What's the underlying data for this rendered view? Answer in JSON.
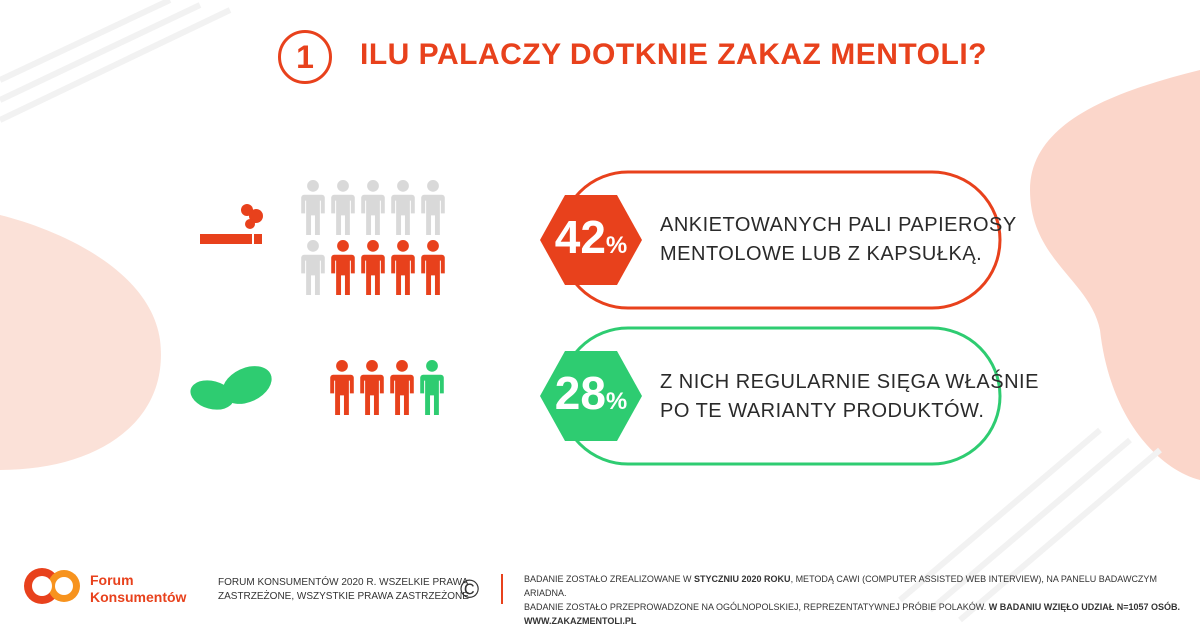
{
  "header": {
    "number": "1",
    "title": "ILU PALACZY DOTKNIE ZAKAZ MENTOLI?"
  },
  "stats": [
    {
      "number": "42",
      "sign": "%",
      "lines": [
        "ANKIETOWANYCH PALI PAPIEROSY",
        "MENTOLOWE LUB Z KAPSUŁKĄ."
      ]
    },
    {
      "number": "28",
      "sign": "%",
      "lines": [
        "Z NICH REGULARNIE SIĘGA WŁAŚNIE",
        "PO TE WARIANTY PRODUKTÓW."
      ]
    }
  ],
  "footer": {
    "logo": [
      "Forum",
      "Konsumentów"
    ],
    "copyright": [
      "FORUM KONSUMENTÓW 2020 R. WSZELKIE PRAWA",
      "ZASTRZEŻONE, WSZYSTKIE PRAWA ZASTRZEŻONE"
    ],
    "copyright_symbol": "©",
    "note_line1": [
      "BADANIE ZOSTAŁO ZREALIZOWANE W ",
      "STYCZNIU 2020 ROKU",
      ", METODĄ CAWI (COMPUTER ASSISTED WEB INTERVIEW), NA PANELU BADAWCZYM ARIADNA."
    ],
    "note_line2": [
      "BADANIE ZOSTAŁO PRZEPROWADZONE NA OGÓLNOPOLSKIEJ,  REPREZENTATYWNEJ PRÓBIE POLAKÓW. ",
      "W BADANIU WZIĘŁO UDZIAŁ N=1057 OSÓB."
    ],
    "url": "WWW.ZAKAZMENTOLI.PL"
  }
}
